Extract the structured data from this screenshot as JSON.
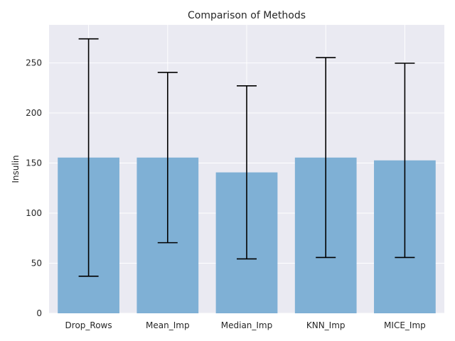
{
  "chart_data": {
    "type": "bar",
    "title": "Comparison of Methods",
    "xlabel": "",
    "ylabel": "Insulin",
    "categories": [
      "Drop_Rows",
      "Mean_Imp",
      "Median_Imp",
      "KNN_Imp",
      "MICE_Imp"
    ],
    "values": [
      155.5,
      155.5,
      140.7,
      155.5,
      152.7
    ],
    "error": [
      118.5,
      85.0,
      86.4,
      99.8,
      97.0
    ],
    "ylim": [
      0,
      288
    ],
    "yticks": [
      0,
      50,
      100,
      150,
      200,
      250
    ],
    "grid": true,
    "colors": {
      "bar": "#7fb0d5",
      "background": "#eaeaf2",
      "grid": "#ffffff",
      "errorbar": "#000000"
    }
  }
}
